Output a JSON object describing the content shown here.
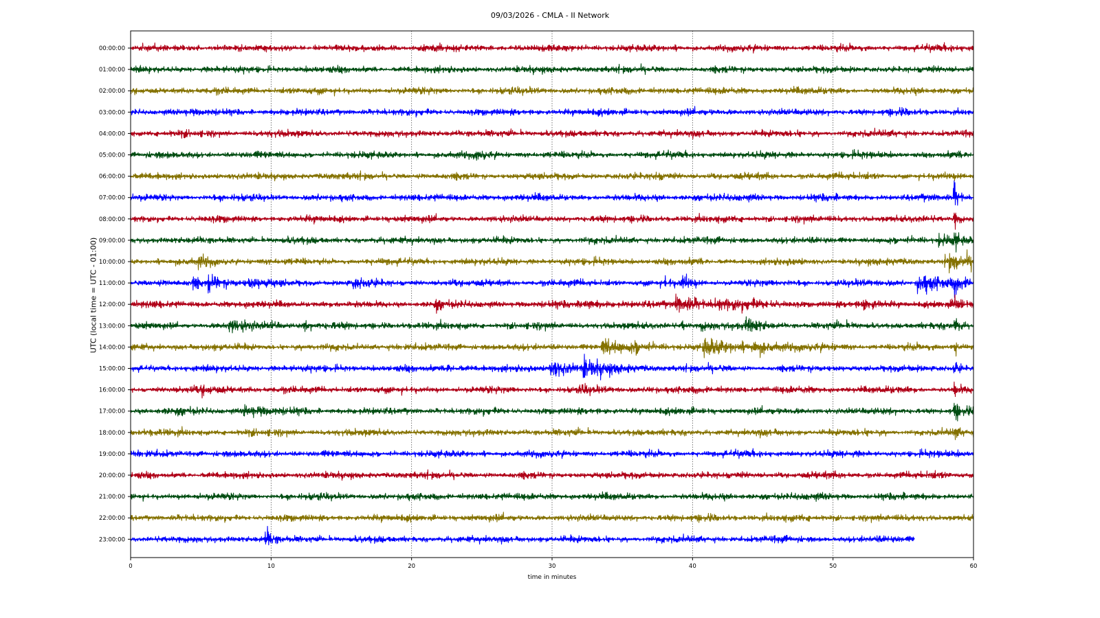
{
  "chart_data": {
    "type": "line",
    "title": "09/03/2026 - CMLA - II Network",
    "xlabel": "time in minutes",
    "ylabel": "UTC (local time = UTC - 01:00)",
    "xlim": [
      0,
      60
    ],
    "x_ticks": [
      "0",
      "10",
      "20",
      "30",
      "40",
      "50",
      "60"
    ],
    "grid": "vertical dotted at x ticks",
    "series_colors": [
      "#b00018",
      "#004d12",
      "#857200",
      "#0000ff"
    ],
    "rows": [
      {
        "label": "00:00:00",
        "end_min": 60,
        "events": []
      },
      {
        "label": "01:00:00",
        "end_min": 60,
        "events": []
      },
      {
        "label": "02:00:00",
        "end_min": 60,
        "events": []
      },
      {
        "label": "03:00:00",
        "end_min": 60,
        "events": []
      },
      {
        "label": "04:00:00",
        "end_min": 60,
        "events": []
      },
      {
        "label": "05:00:00",
        "end_min": 60,
        "events": [
          {
            "t": 24.6,
            "amp": 1.3,
            "dur": 0.6
          }
        ]
      },
      {
        "label": "06:00:00",
        "end_min": 60,
        "events": [
          {
            "t": 37.2,
            "amp": 1.4,
            "dur": 0.5
          }
        ]
      },
      {
        "label": "07:00:00",
        "end_min": 60,
        "events": [
          {
            "t": 58.6,
            "amp": 5.0,
            "dur": 0.3
          }
        ]
      },
      {
        "label": "08:00:00",
        "end_min": 60,
        "events": [
          {
            "t": 58.6,
            "amp": 4.0,
            "dur": 0.3
          }
        ]
      },
      {
        "label": "09:00:00",
        "end_min": 60,
        "events": [
          {
            "t": 57.5,
            "amp": 1.8,
            "dur": 1.4
          },
          {
            "t": 58.6,
            "amp": 3.0,
            "dur": 0.3
          }
        ]
      },
      {
        "label": "10:00:00",
        "end_min": 60,
        "events": [
          {
            "t": 4.8,
            "amp": 1.6,
            "dur": 0.8
          },
          {
            "t": 58.0,
            "amp": 2.8,
            "dur": 2.0
          }
        ]
      },
      {
        "label": "11:00:00",
        "end_min": 60,
        "events": [
          {
            "t": 4.4,
            "amp": 2.5,
            "dur": 0.3
          },
          {
            "t": 5.5,
            "amp": 3.0,
            "dur": 1.2
          },
          {
            "t": 8.3,
            "amp": 1.2,
            "dur": 0.8
          },
          {
            "t": 15.8,
            "amp": 1.3,
            "dur": 0.8
          },
          {
            "t": 38.0,
            "amp": 1.8,
            "dur": 0.3
          },
          {
            "t": 39.2,
            "amp": 3.0,
            "dur": 0.5
          },
          {
            "t": 56.0,
            "amp": 3.8,
            "dur": 1.5
          },
          {
            "t": 58.6,
            "amp": 3.0,
            "dur": 0.4
          }
        ]
      },
      {
        "label": "12:00:00",
        "end_min": 60,
        "events": [
          {
            "t": 21.7,
            "amp": 1.5,
            "dur": 0.3
          },
          {
            "t": 32.0,
            "amp": 1.4,
            "dur": 1.5
          },
          {
            "t": 38.8,
            "amp": 2.8,
            "dur": 1.8
          },
          {
            "t": 41.5,
            "amp": 1.5,
            "dur": 2.5
          },
          {
            "t": 52.0,
            "amp": 1.3,
            "dur": 1.2
          },
          {
            "t": 58.6,
            "amp": 3.5,
            "dur": 0.3
          }
        ]
      },
      {
        "label": "13:00:00",
        "end_min": 60,
        "events": [
          {
            "t": 7.0,
            "amp": 1.5,
            "dur": 1.5
          },
          {
            "t": 10.0,
            "amp": 1.3,
            "dur": 0.4
          },
          {
            "t": 12.3,
            "amp": 1.3,
            "dur": 0.4
          },
          {
            "t": 39.2,
            "amp": 1.8,
            "dur": 0.3
          },
          {
            "t": 40.5,
            "amp": 1.6,
            "dur": 0.8
          },
          {
            "t": 43.8,
            "amp": 1.8,
            "dur": 1.0
          },
          {
            "t": 58.6,
            "amp": 3.0,
            "dur": 0.3
          }
        ]
      },
      {
        "label": "14:00:00",
        "end_min": 60,
        "events": [
          {
            "t": 33.5,
            "amp": 2.8,
            "dur": 1.8
          },
          {
            "t": 35.8,
            "amp": 1.5,
            "dur": 0.5
          },
          {
            "t": 40.7,
            "amp": 2.8,
            "dur": 1.8
          },
          {
            "t": 44.2,
            "amp": 2.0,
            "dur": 1.8
          },
          {
            "t": 58.6,
            "amp": 3.0,
            "dur": 0.3
          }
        ]
      },
      {
        "label": "15:00:00",
        "end_min": 60,
        "events": [
          {
            "t": 22.4,
            "amp": 1.5,
            "dur": 0.8
          },
          {
            "t": 29.8,
            "amp": 3.3,
            "dur": 1.5
          },
          {
            "t": 32.2,
            "amp": 2.8,
            "dur": 1.5
          },
          {
            "t": 58.6,
            "amp": 3.0,
            "dur": 0.3
          }
        ]
      },
      {
        "label": "16:00:00",
        "end_min": 60,
        "events": [
          {
            "t": 5.0,
            "amp": 1.3,
            "dur": 1.0
          },
          {
            "t": 32.0,
            "amp": 1.3,
            "dur": 0.5
          },
          {
            "t": 36.8,
            "amp": 1.3,
            "dur": 0.4
          },
          {
            "t": 58.6,
            "amp": 3.5,
            "dur": 0.3
          }
        ]
      },
      {
        "label": "17:00:00",
        "end_min": 60,
        "events": [
          {
            "t": 8.0,
            "amp": 1.4,
            "dur": 1.5
          },
          {
            "t": 58.6,
            "amp": 3.5,
            "dur": 0.3
          }
        ]
      },
      {
        "label": "18:00:00",
        "end_min": 60,
        "events": [
          {
            "t": 58.6,
            "amp": 2.5,
            "dur": 0.2
          }
        ]
      },
      {
        "label": "19:00:00",
        "end_min": 60,
        "events": []
      },
      {
        "label": "20:00:00",
        "end_min": 60,
        "events": []
      },
      {
        "label": "21:00:00",
        "end_min": 60,
        "events": []
      },
      {
        "label": "22:00:00",
        "end_min": 60,
        "events": []
      },
      {
        "label": "23:00:00",
        "end_min": 55.8,
        "events": [
          {
            "t": 9.6,
            "amp": 4.0,
            "dur": 0.4
          }
        ]
      }
    ]
  }
}
